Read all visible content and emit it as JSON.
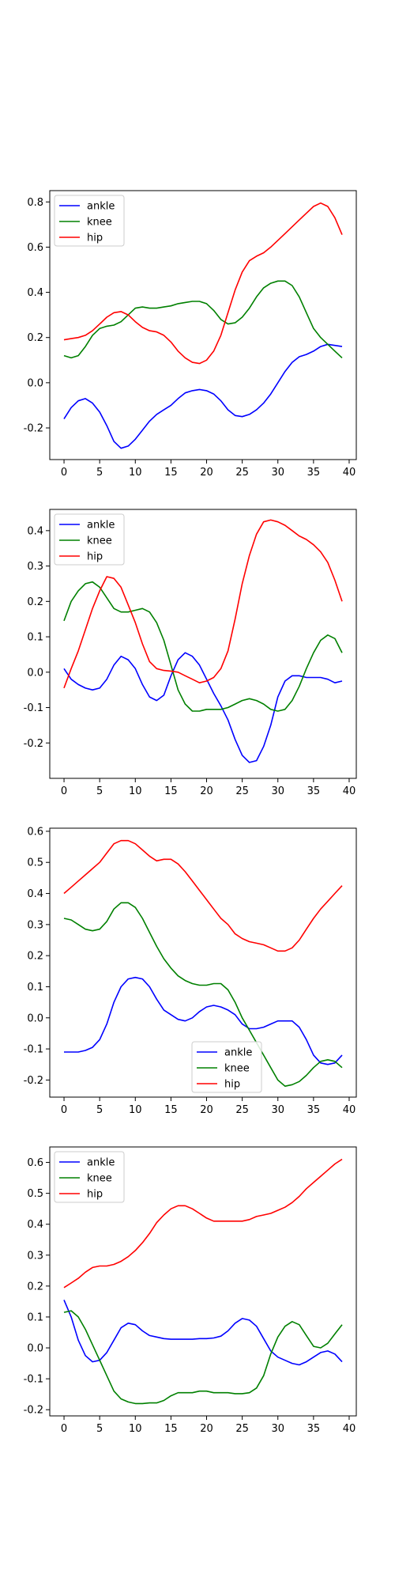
{
  "colors": {
    "ankle": "#0000ff",
    "knee": "#008000",
    "hip": "#ff0000",
    "axes": "#000000",
    "background": "#ffffff"
  },
  "chart_data": [
    {
      "type": "line",
      "title": "",
      "xlabel": "",
      "ylabel": "",
      "xlim": [
        -2,
        41
      ],
      "ylim": [
        -0.34,
        0.85
      ],
      "xticks": [
        "0",
        "5",
        "10",
        "15",
        "20",
        "25",
        "30",
        "35",
        "40"
      ],
      "yticks": [
        "-0.2",
        "0.0",
        "0.2",
        "0.4",
        "0.6",
        "0.8"
      ],
      "legend_position": "upper-left",
      "grid": false,
      "x": [
        0,
        1,
        2,
        3,
        4,
        5,
        6,
        7,
        8,
        9,
        10,
        11,
        12,
        13,
        14,
        15,
        16,
        17,
        18,
        19,
        20,
        21,
        22,
        23,
        24,
        25,
        26,
        27,
        28,
        29,
        30,
        31,
        32,
        33,
        34,
        35,
        36,
        37,
        38,
        39
      ],
      "series": [
        {
          "name": "ankle",
          "color": "#0000ff",
          "values": [
            -0.16,
            -0.11,
            -0.08,
            -0.07,
            -0.09,
            -0.13,
            -0.19,
            -0.26,
            -0.29,
            -0.28,
            -0.25,
            -0.21,
            -0.17,
            -0.14,
            -0.12,
            -0.1,
            -0.07,
            -0.045,
            -0.035,
            -0.03,
            -0.035,
            -0.05,
            -0.08,
            -0.12,
            -0.145,
            -0.15,
            -0.14,
            -0.12,
            -0.09,
            -0.05,
            0.0,
            0.05,
            0.09,
            0.115,
            0.125,
            0.14,
            0.16,
            0.17,
            0.165,
            0.16
          ]
        },
        {
          "name": "knee",
          "color": "#008000",
          "values": [
            0.12,
            0.11,
            0.12,
            0.16,
            0.21,
            0.24,
            0.25,
            0.255,
            0.27,
            0.3,
            0.33,
            0.335,
            0.33,
            0.33,
            0.335,
            0.34,
            0.35,
            0.355,
            0.36,
            0.36,
            0.35,
            0.32,
            0.28,
            0.26,
            0.265,
            0.29,
            0.33,
            0.38,
            0.42,
            0.44,
            0.45,
            0.45,
            0.43,
            0.38,
            0.31,
            0.24,
            0.2,
            0.17,
            0.14,
            0.11
          ]
        },
        {
          "name": "hip",
          "color": "#ff0000",
          "values": [
            0.19,
            0.195,
            0.2,
            0.21,
            0.23,
            0.26,
            0.29,
            0.31,
            0.315,
            0.3,
            0.27,
            0.245,
            0.23,
            0.225,
            0.21,
            0.18,
            0.14,
            0.11,
            0.09,
            0.085,
            0.1,
            0.14,
            0.21,
            0.31,
            0.41,
            0.49,
            0.54,
            0.56,
            0.575,
            0.6,
            0.63,
            0.66,
            0.69,
            0.72,
            0.75,
            0.78,
            0.795,
            0.78,
            0.73,
            0.655
          ]
        }
      ]
    },
    {
      "type": "line",
      "title": "",
      "xlabel": "",
      "ylabel": "",
      "xlim": [
        -2,
        41
      ],
      "ylim": [
        -0.3,
        0.46
      ],
      "xticks": [
        "0",
        "5",
        "10",
        "15",
        "20",
        "25",
        "30",
        "35",
        "40"
      ],
      "yticks": [
        "-0.2",
        "-0.1",
        "0.0",
        "0.1",
        "0.2",
        "0.3",
        "0.4"
      ],
      "legend_position": "upper-left",
      "grid": false,
      "x": [
        0,
        1,
        2,
        3,
        4,
        5,
        6,
        7,
        8,
        9,
        10,
        11,
        12,
        13,
        14,
        15,
        16,
        17,
        18,
        19,
        20,
        21,
        22,
        23,
        24,
        25,
        26,
        27,
        28,
        29,
        30,
        31,
        32,
        33,
        34,
        35,
        36,
        37,
        38,
        39
      ],
      "series": [
        {
          "name": "ankle",
          "color": "#0000ff",
          "values": [
            0.01,
            -0.02,
            -0.035,
            -0.045,
            -0.05,
            -0.045,
            -0.02,
            0.02,
            0.045,
            0.035,
            0.01,
            -0.035,
            -0.07,
            -0.08,
            -0.065,
            -0.01,
            0.035,
            0.055,
            0.045,
            0.02,
            -0.02,
            -0.06,
            -0.095,
            -0.135,
            -0.19,
            -0.235,
            -0.255,
            -0.25,
            -0.21,
            -0.15,
            -0.07,
            -0.025,
            -0.01,
            -0.01,
            -0.015,
            -0.015,
            -0.015,
            -0.02,
            -0.03,
            -0.025
          ]
        },
        {
          "name": "knee",
          "color": "#008000",
          "values": [
            0.145,
            0.2,
            0.23,
            0.25,
            0.255,
            0.24,
            0.21,
            0.18,
            0.17,
            0.17,
            0.175,
            0.18,
            0.17,
            0.14,
            0.09,
            0.02,
            -0.05,
            -0.09,
            -0.11,
            -0.11,
            -0.105,
            -0.105,
            -0.105,
            -0.1,
            -0.09,
            -0.08,
            -0.075,
            -0.08,
            -0.09,
            -0.105,
            -0.11,
            -0.105,
            -0.08,
            -0.04,
            0.01,
            0.055,
            0.09,
            0.105,
            0.095,
            0.055
          ]
        },
        {
          "name": "hip",
          "color": "#ff0000",
          "values": [
            -0.045,
            0.01,
            0.06,
            0.12,
            0.18,
            0.23,
            0.27,
            0.265,
            0.24,
            0.19,
            0.14,
            0.08,
            0.03,
            0.01,
            0.005,
            0.003,
            0.0,
            -0.01,
            -0.02,
            -0.03,
            -0.025,
            -0.015,
            0.01,
            0.06,
            0.15,
            0.25,
            0.33,
            0.39,
            0.425,
            0.43,
            0.425,
            0.415,
            0.4,
            0.385,
            0.375,
            0.36,
            0.34,
            0.31,
            0.26,
            0.2
          ]
        }
      ]
    },
    {
      "type": "line",
      "title": "",
      "xlabel": "",
      "ylabel": "",
      "xlim": [
        -2,
        41
      ],
      "ylim": [
        -0.255,
        0.61
      ],
      "xticks": [
        "0",
        "5",
        "10",
        "15",
        "20",
        "25",
        "30",
        "35",
        "40"
      ],
      "yticks": [
        "-0.2",
        "-0.1",
        "0.0",
        "0.1",
        "0.2",
        "0.3",
        "0.4",
        "0.5",
        "0.6"
      ],
      "legend_position": "lower-center",
      "grid": false,
      "x": [
        0,
        1,
        2,
        3,
        4,
        5,
        6,
        7,
        8,
        9,
        10,
        11,
        12,
        13,
        14,
        15,
        16,
        17,
        18,
        19,
        20,
        21,
        22,
        23,
        24,
        25,
        26,
        27,
        28,
        29,
        30,
        31,
        32,
        33,
        34,
        35,
        36,
        37,
        38,
        39
      ],
      "series": [
        {
          "name": "ankle",
          "color": "#0000ff",
          "values": [
            -0.11,
            -0.11,
            -0.11,
            -0.105,
            -0.095,
            -0.07,
            -0.02,
            0.05,
            0.1,
            0.125,
            0.13,
            0.125,
            0.1,
            0.06,
            0.025,
            0.01,
            -0.005,
            -0.01,
            0.0,
            0.02,
            0.035,
            0.04,
            0.035,
            0.025,
            0.01,
            -0.02,
            -0.035,
            -0.035,
            -0.03,
            -0.02,
            -0.01,
            -0.01,
            -0.01,
            -0.03,
            -0.07,
            -0.12,
            -0.145,
            -0.15,
            -0.145,
            -0.12
          ]
        },
        {
          "name": "knee",
          "color": "#008000",
          "values": [
            0.32,
            0.315,
            0.3,
            0.285,
            0.28,
            0.285,
            0.31,
            0.35,
            0.37,
            0.37,
            0.355,
            0.32,
            0.275,
            0.23,
            0.19,
            0.16,
            0.135,
            0.12,
            0.11,
            0.105,
            0.105,
            0.11,
            0.11,
            0.09,
            0.05,
            0.0,
            -0.04,
            -0.08,
            -0.12,
            -0.16,
            -0.2,
            -0.22,
            -0.215,
            -0.205,
            -0.185,
            -0.16,
            -0.14,
            -0.135,
            -0.14,
            -0.16
          ]
        },
        {
          "name": "hip",
          "color": "#ff0000",
          "values": [
            0.4,
            0.42,
            0.44,
            0.46,
            0.48,
            0.5,
            0.53,
            0.56,
            0.57,
            0.57,
            0.56,
            0.54,
            0.52,
            0.505,
            0.51,
            0.51,
            0.495,
            0.47,
            0.44,
            0.41,
            0.38,
            0.35,
            0.32,
            0.3,
            0.27,
            0.255,
            0.245,
            0.24,
            0.235,
            0.225,
            0.215,
            0.215,
            0.225,
            0.25,
            0.285,
            0.32,
            0.35,
            0.375,
            0.4,
            0.425
          ]
        }
      ]
    },
    {
      "type": "line",
      "title": "",
      "xlabel": "",
      "ylabel": "",
      "xlim": [
        -2,
        41
      ],
      "ylim": [
        -0.22,
        0.65
      ],
      "xticks": [
        "0",
        "5",
        "10",
        "15",
        "20",
        "25",
        "30",
        "35",
        "40"
      ],
      "yticks": [
        "-0.2",
        "-0.1",
        "0.0",
        "0.1",
        "0.2",
        "0.3",
        "0.4",
        "0.5",
        "0.6"
      ],
      "legend_position": "upper-left",
      "grid": false,
      "x": [
        0,
        1,
        2,
        3,
        4,
        5,
        6,
        7,
        8,
        9,
        10,
        11,
        12,
        13,
        14,
        15,
        16,
        17,
        18,
        19,
        20,
        21,
        22,
        23,
        24,
        25,
        26,
        27,
        28,
        29,
        30,
        31,
        32,
        33,
        34,
        35,
        36,
        37,
        38,
        39
      ],
      "series": [
        {
          "name": "ankle",
          "color": "#0000ff",
          "values": [
            0.155,
            0.1,
            0.025,
            -0.025,
            -0.045,
            -0.04,
            -0.015,
            0.025,
            0.065,
            0.08,
            0.075,
            0.055,
            0.04,
            0.035,
            0.03,
            0.028,
            0.028,
            0.028,
            0.028,
            0.03,
            0.03,
            0.032,
            0.038,
            0.055,
            0.08,
            0.095,
            0.09,
            0.07,
            0.03,
            -0.01,
            -0.03,
            -0.04,
            -0.05,
            -0.055,
            -0.045,
            -0.03,
            -0.015,
            -0.01,
            -0.02,
            -0.045
          ]
        },
        {
          "name": "knee",
          "color": "#008000",
          "values": [
            0.115,
            0.12,
            0.1,
            0.06,
            0.01,
            -0.04,
            -0.09,
            -0.14,
            -0.165,
            -0.175,
            -0.18,
            -0.18,
            -0.178,
            -0.178,
            -0.17,
            -0.155,
            -0.145,
            -0.145,
            -0.145,
            -0.14,
            -0.14,
            -0.145,
            -0.145,
            -0.145,
            -0.148,
            -0.148,
            -0.145,
            -0.13,
            -0.09,
            -0.02,
            0.035,
            0.07,
            0.085,
            0.075,
            0.04,
            0.005,
            0.0,
            0.015,
            0.045,
            0.075
          ]
        },
        {
          "name": "hip",
          "color": "#ff0000",
          "values": [
            0.195,
            0.21,
            0.225,
            0.245,
            0.26,
            0.265,
            0.265,
            0.27,
            0.28,
            0.295,
            0.315,
            0.34,
            0.37,
            0.405,
            0.43,
            0.45,
            0.46,
            0.46,
            0.45,
            0.435,
            0.42,
            0.41,
            0.41,
            0.41,
            0.41,
            0.41,
            0.415,
            0.425,
            0.43,
            0.435,
            0.445,
            0.455,
            0.47,
            0.49,
            0.515,
            0.535,
            0.555,
            0.575,
            0.595,
            0.61
          ]
        }
      ]
    }
  ]
}
